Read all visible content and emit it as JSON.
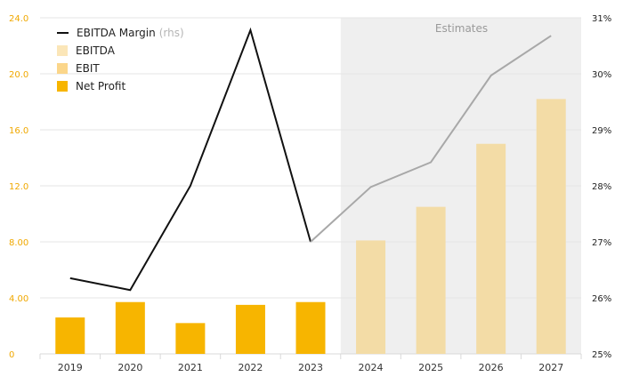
{
  "chart_data": {
    "type": "bar",
    "categories": [
      "2019",
      "2020",
      "2021",
      "2022",
      "2023",
      "2024",
      "2025",
      "2026",
      "2027"
    ],
    "series": [
      {
        "name": "EBITDA Margin",
        "kind": "line",
        "axis": "right",
        "color": "#111111",
        "estimate_color": "#a8a8a8",
        "values": [
          26.35,
          26.14,
          28.0,
          30.78,
          27.0,
          27.98,
          28.42,
          29.97,
          30.68
        ]
      },
      {
        "name": "EBITDA",
        "kind": "bar",
        "axis": "left",
        "color": "#fbe6b8",
        "values": [
          null,
          null,
          null,
          null,
          null,
          null,
          null,
          null,
          null
        ]
      },
      {
        "name": "EBIT",
        "kind": "bar",
        "axis": "left",
        "color": "#fbd68a",
        "values": [
          null,
          null,
          null,
          null,
          null,
          null,
          null,
          null,
          null
        ]
      },
      {
        "name": "Net Profit",
        "kind": "bar",
        "axis": "left",
        "color": "#f7b500",
        "estimate_color": "#f3dca6",
        "values": [
          2.6,
          3.7,
          2.2,
          3.5,
          3.7,
          8.1,
          10.5,
          15.0,
          18.2
        ]
      }
    ],
    "legend_suffix": "(rhs)",
    "estimate_start_index": 5,
    "annotation": "Estimates",
    "y_left": {
      "min": 0,
      "max": 24,
      "ticks": [
        "0",
        "4.00",
        "8.00",
        "12.0",
        "16.0",
        "20.0",
        "24.0"
      ],
      "color": "#f0a800"
    },
    "y_right": {
      "min": 25,
      "max": 31,
      "ticks": [
        "25%",
        "26%",
        "27%",
        "28%",
        "29%",
        "30%",
        "31%"
      ],
      "color": "#222222"
    },
    "grid": true,
    "legend_position": "top-left"
  }
}
